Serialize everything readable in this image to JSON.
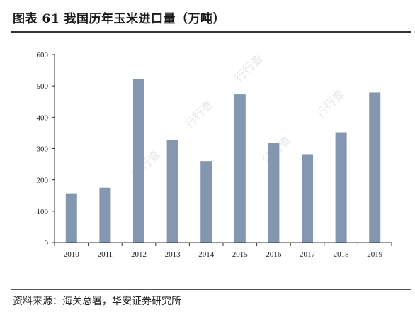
{
  "figure": {
    "title": "图表 61  我国历年玉米进口量（万吨）",
    "source": "资料来源：海关总署，华安证券研究所",
    "watermark": "行行查"
  },
  "colors": {
    "bar": "#8497b0",
    "axis": "#333333",
    "text": "#222222"
  },
  "chart_data": {
    "type": "bar",
    "title": "我国历年玉米进口量（万吨）",
    "xlabel": "",
    "ylabel": "",
    "categories": [
      "2010",
      "2011",
      "2012",
      "2013",
      "2014",
      "2015",
      "2016",
      "2017",
      "2018",
      "2019"
    ],
    "values": [
      157,
      175,
      521,
      326,
      260,
      473,
      317,
      282,
      352,
      479
    ],
    "ylim": [
      0,
      600
    ],
    "yticks": [
      0,
      100,
      200,
      300,
      400,
      500,
      600
    ],
    "grid": false,
    "legend": "none"
  }
}
